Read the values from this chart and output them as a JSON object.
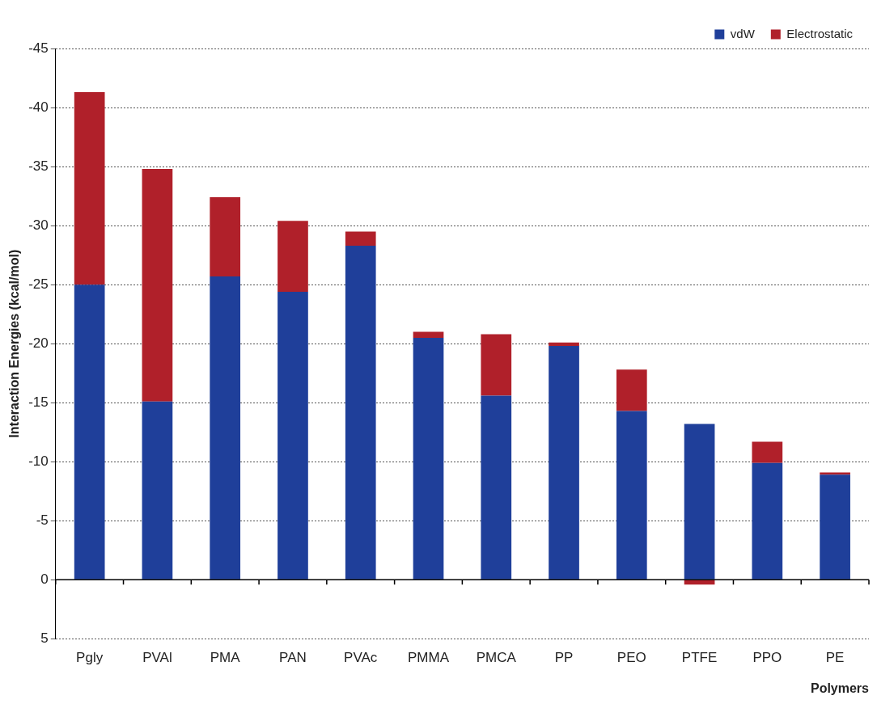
{
  "chart_data": {
    "type": "bar",
    "stacked": true,
    "xlabel": "Polymers",
    "ylabel": "Interaction Energies (kcal/mol)",
    "categories": [
      "Pgly",
      "PVAl",
      "PMA",
      "PAN",
      "PVAc",
      "PMMA",
      "PMCA",
      "PP",
      "PEO",
      "PTFE",
      "PPO",
      "PE"
    ],
    "series": [
      {
        "name": "vdW",
        "color": "#1f3f9a",
        "values": [
          -25.0,
          -15.1,
          -25.7,
          -24.4,
          -28.3,
          -20.5,
          -15.6,
          -19.8,
          -14.3,
          -13.2,
          -9.9,
          -8.9
        ]
      },
      {
        "name": "Electrostatic",
        "color": "#b0202a",
        "values": [
          -16.3,
          -19.7,
          -6.7,
          -6.0,
          -1.2,
          -0.5,
          -5.2,
          -0.3,
          -3.5,
          0.4,
          -1.8,
          -0.2
        ]
      }
    ],
    "ylim": [
      5,
      -45
    ],
    "yticks": [
      -45,
      -40,
      -35,
      -30,
      -25,
      -20,
      -15,
      -10,
      -5,
      0,
      5
    ],
    "grid": "y",
    "legend": "top right"
  }
}
